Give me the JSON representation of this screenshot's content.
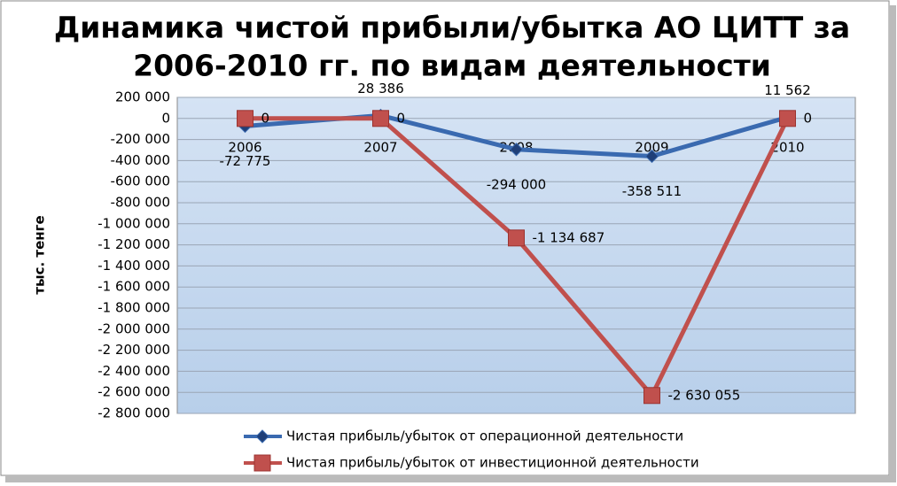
{
  "chart_data": {
    "type": "line",
    "title": [
      "Динамика чистой прибыли/убытка АО ЦИТТ за",
      "2006-2010 гг. по видам деятельности"
    ],
    "y_label": "тыс. тенге",
    "categories": [
      "2006",
      "2007",
      "2008",
      "2009",
      "2010"
    ],
    "series": [
      {
        "name": "Чистая прибыль/убыток от операционной деятельности",
        "color": "#3a6ab0",
        "marker": "diamond",
        "values": [
          -72775,
          28386,
          -294000,
          -358511,
          11562
        ],
        "value_labels": [
          "-72 775",
          "28 386",
          "-294 000",
          "-358 511",
          "11 562"
        ]
      },
      {
        "name": "Чистая прибыль/убыток от инвестиционной деятельности",
        "color": "#c0504d",
        "marker": "square",
        "values": [
          0,
          0,
          -1134687,
          -2630055,
          0
        ],
        "value_labels": [
          "0",
          "0",
          "-1 134 687",
          "-2 630 055",
          "0"
        ]
      }
    ],
    "ylim": [
      -2800000,
      200000
    ],
    "yticks": [
      {
        "value": 200000,
        "label": "200 000"
      },
      0,
      {
        "value": -200000,
        "label": "-200 000"
      },
      {
        "value": -400000,
        "label": "-400 000"
      },
      {
        "value": -600000,
        "label": "-600 000"
      },
      {
        "value": -800000,
        "label": "-800 000"
      },
      {
        "value": -1000000,
        "label": "-1 000 000"
      },
      {
        "value": -1200000,
        "label": "-1 200 000"
      },
      {
        "value": -1400000,
        "label": "-1 400 000"
      },
      {
        "value": -1600000,
        "label": "-1 600 000"
      },
      {
        "value": -1800000,
        "label": "-1 800 000"
      },
      {
        "value": -2000000,
        "label": "-2 000 000"
      },
      {
        "value": -2200000,
        "label": "-2 200 000"
      },
      {
        "value": -2400000,
        "label": "-2 400 000"
      },
      {
        "value": -2600000,
        "label": "-2 600 000"
      },
      {
        "value": -2800000,
        "label": "-2 800 000"
      }
    ],
    "grid": true
  }
}
